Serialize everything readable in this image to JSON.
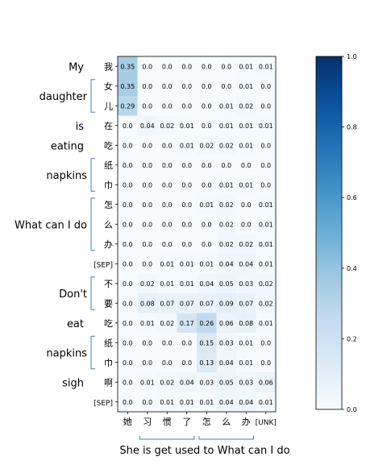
{
  "chart_data": {
    "type": "heatmap",
    "title": "",
    "x_categories": [
      "她",
      "习",
      "惯",
      "了",
      "怎",
      "么",
      "办",
      "[UNK]"
    ],
    "y_categories": [
      "我",
      "女",
      "儿",
      "在",
      "吃",
      "纸",
      "巾",
      "怎",
      "么",
      "办",
      "[SEP]",
      "不",
      "要",
      "吃",
      "纸",
      "巾",
      "啊",
      "[SEP]"
    ],
    "values": [
      [
        0.35,
        0.0,
        0.0,
        0.0,
        0.0,
        0.0,
        0.01,
        0.01
      ],
      [
        0.35,
        0.0,
        0.0,
        0.0,
        0.0,
        0.0,
        0.01,
        0.0
      ],
      [
        0.29,
        0.0,
        0.0,
        0.0,
        0.0,
        0.01,
        0.02,
        0.0
      ],
      [
        0.0,
        0.04,
        0.02,
        0.01,
        0.0,
        0.01,
        0.01,
        0.01
      ],
      [
        0.0,
        0.0,
        0.0,
        0.01,
        0.02,
        0.02,
        0.01,
        0.0
      ],
      [
        0.0,
        0.0,
        0.0,
        0.0,
        0.0,
        0.0,
        0.0,
        0.0
      ],
      [
        0.0,
        0.0,
        0.0,
        0.0,
        0.0,
        0.01,
        0.01,
        0.0
      ],
      [
        0.0,
        0.0,
        0.0,
        0.0,
        0.01,
        0.02,
        0.0,
        0.01
      ],
      [
        0.0,
        0.0,
        0.0,
        0.0,
        0.0,
        0.02,
        0.0,
        0.01
      ],
      [
        0.0,
        0.0,
        0.0,
        0.0,
        0.0,
        0.02,
        0.02,
        0.01
      ],
      [
        0.0,
        0.0,
        0.01,
        0.01,
        0.01,
        0.04,
        0.04,
        0.01
      ],
      [
        0.0,
        0.02,
        0.01,
        0.01,
        0.04,
        0.05,
        0.03,
        0.02
      ],
      [
        0.0,
        0.08,
        0.07,
        0.07,
        0.07,
        0.09,
        0.07,
        0.02
      ],
      [
        0.0,
        0.01,
        0.02,
        0.17,
        0.26,
        0.06,
        0.08,
        0.01
      ],
      [
        0.0,
        0.0,
        0.0,
        0.0,
        0.15,
        0.03,
        0.01,
        0.0
      ],
      [
        0.0,
        0.0,
        0.0,
        0.0,
        0.13,
        0.04,
        0.01,
        0.0
      ],
      [
        0.0,
        0.01,
        0.02,
        0.04,
        0.03,
        0.05,
        0.03,
        0.06
      ],
      [
        0.0,
        0.0,
        0.01,
        0.01,
        0.01,
        0.04,
        0.04,
        0.01
      ]
    ],
    "value_labels": [
      [
        "0.35",
        "0.0",
        "0.0",
        "0.0",
        "0.0",
        "0.0",
        "0.01",
        "0.01"
      ],
      [
        "0.35",
        "0.0",
        "0.0",
        "0.0",
        "0.0",
        "0.0",
        "0.01",
        "0.0"
      ],
      [
        "0.29",
        "0.0",
        "0.0",
        "0.0",
        "0.0",
        "0.01",
        "0.02",
        "0.0"
      ],
      [
        "0.0",
        "0.04",
        "0.02",
        "0.01",
        "0.0",
        "0.01",
        "0.01",
        "0.01"
      ],
      [
        "0.0",
        "0.0",
        "0.0",
        "0.01",
        "0.02",
        "0.02",
        "0.01",
        "0.0"
      ],
      [
        "0.0",
        "0.0",
        "0.0",
        "0.0",
        "0.0",
        "0.0",
        "0.0",
        "0.0"
      ],
      [
        "0.0",
        "0.0",
        "0.0",
        "0.0",
        "0.0",
        "0.01",
        "0.01",
        "0.0"
      ],
      [
        "0.0",
        "0.0",
        "0.0",
        "0.0",
        "0.01",
        "0.02",
        "0.0",
        "0.01"
      ],
      [
        "0.0",
        "0.0",
        "0.0",
        "0.0",
        "0.0",
        "0.02",
        "0.0",
        "0.01"
      ],
      [
        "0.0",
        "0.0",
        "0.0",
        "0.0",
        "0.0",
        "0.02",
        "0.02",
        "0.01"
      ],
      [
        "0.0",
        "0.0",
        "0.01",
        "0.01",
        "0.01",
        "0.04",
        "0.04",
        "0.01"
      ],
      [
        "0.0",
        "0.02",
        "0.01",
        "0.01",
        "0.04",
        "0.05",
        "0.03",
        "0.02"
      ],
      [
        "0.0",
        "0.08",
        "0.07",
        "0.07",
        "0.07",
        "0.09",
        "0.07",
        "0.02"
      ],
      [
        "0.0",
        "0.01",
        "0.02",
        "0.17",
        "0.26",
        "0.06",
        "0.08",
        "0.01"
      ],
      [
        "0.0",
        "0.0",
        "0.0",
        "0.0",
        "0.15",
        "0.03",
        "0.01",
        "0.0"
      ],
      [
        "0.0",
        "0.0",
        "0.0",
        "0.0",
        "0.13",
        "0.04",
        "0.01",
        "0.0"
      ],
      [
        "0.0",
        "0.01",
        "0.02",
        "0.04",
        "0.03",
        "0.05",
        "0.03",
        "0.06"
      ],
      [
        "0.0",
        "0.0",
        "0.01",
        "0.01",
        "0.01",
        "0.04",
        "0.04",
        "0.01"
      ]
    ],
    "colorscale": {
      "min": 0.0,
      "max": 1.0,
      "low_color": "#f7fbff",
      "high_color": "#08306b",
      "name": "Blues"
    },
    "colorbar": {
      "ticks": [
        "0.0",
        "0.2",
        "0.4",
        "0.6",
        "0.8",
        "1.0"
      ],
      "tick_values": [
        0.0,
        0.2,
        0.4,
        0.6,
        0.8,
        1.0
      ]
    },
    "y_groups": [
      {
        "label": "My",
        "rows": [
          0,
          0
        ],
        "bracket": false
      },
      {
        "label": "daughter",
        "rows": [
          1,
          2
        ],
        "bracket": true
      },
      {
        "label": "is",
        "rows": [
          3,
          3
        ],
        "bracket": false
      },
      {
        "label": "eating",
        "rows": [
          4,
          4
        ],
        "bracket": false
      },
      {
        "label": "napkins",
        "rows": [
          5,
          6
        ],
        "bracket": true
      },
      {
        "label": "What can I do",
        "rows": [
          7,
          9
        ],
        "bracket": true
      },
      {
        "label": "Don't",
        "rows": [
          11,
          12
        ],
        "bracket": true
      },
      {
        "label": "eat",
        "rows": [
          13,
          13
        ],
        "bracket": false
      },
      {
        "label": "napkins",
        "rows": [
          14,
          15
        ],
        "bracket": true
      },
      {
        "label": "sigh",
        "rows": [
          16,
          16
        ],
        "bracket": false
      }
    ],
    "x_groups": [
      {
        "cols": [
          1,
          3
        ]
      },
      {
        "cols": [
          4,
          6
        ]
      }
    ],
    "x_caption": "She is get used to What can I do"
  }
}
